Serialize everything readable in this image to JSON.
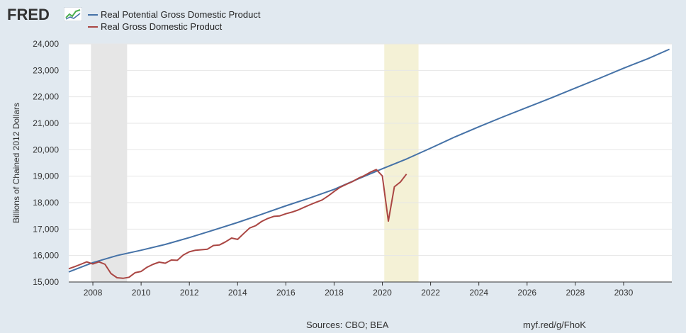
{
  "brand": {
    "logo_text": "FRED"
  },
  "legend": [
    {
      "label": "Real Potential Gross Domestic Product",
      "color": "#4572a7"
    },
    {
      "label": "Real Gross Domestic Product",
      "color": "#aa4643"
    }
  ],
  "footer": {
    "sources": "Sources: CBO; BEA",
    "link": "myf.red/g/FhoK"
  },
  "chart_data": {
    "type": "line",
    "title": "",
    "xlabel": "",
    "ylabel": "Billions of Chained 2012 Dollars",
    "xlim": [
      2007.0,
      2032.0
    ],
    "ylim": [
      15000,
      24000
    ],
    "x_ticks": [
      2008,
      2010,
      2012,
      2014,
      2016,
      2018,
      2020,
      2022,
      2024,
      2026,
      2028,
      2030
    ],
    "x_tick_labels": [
      "2008",
      "2010",
      "2012",
      "2014",
      "2016",
      "2018",
      "2020",
      "2022",
      "2024",
      "2026",
      "2028",
      "2030"
    ],
    "y_ticks": [
      15000,
      16000,
      17000,
      18000,
      19000,
      20000,
      21000,
      22000,
      23000,
      24000
    ],
    "y_tick_labels": [
      "15,000",
      "16,000",
      "17,000",
      "18,000",
      "19,000",
      "20,000",
      "21,000",
      "22,000",
      "23,000",
      "24,000"
    ],
    "grid": "horizontal",
    "legend_position": "top-left",
    "recessions": [
      {
        "start": 2007.92,
        "end": 2009.42,
        "color": "#e6e6e6"
      },
      {
        "start": 2020.08,
        "end": 2021.5,
        "color": "#f4f1d6"
      }
    ],
    "series": [
      {
        "name": "Real Potential Gross Domestic Product",
        "color": "#4572a7",
        "x": [
          2007.0,
          2008.0,
          2009.0,
          2010.0,
          2011.0,
          2012.0,
          2013.0,
          2014.0,
          2015.0,
          2016.0,
          2017.0,
          2018.0,
          2019.0,
          2020.0,
          2021.0,
          2022.0,
          2023.0,
          2024.0,
          2025.0,
          2026.0,
          2027.0,
          2028.0,
          2029.0,
          2030.0,
          2031.0,
          2031.9
        ],
        "y": [
          15380,
          15730,
          16000,
          16200,
          16420,
          16680,
          16960,
          17250,
          17560,
          17880,
          18180,
          18500,
          18900,
          19280,
          19650,
          20060,
          20480,
          20870,
          21240,
          21600,
          21960,
          22330,
          22700,
          23080,
          23440,
          23800
        ]
      },
      {
        "name": "Real Gross Domestic Product",
        "color": "#aa4643",
        "x": [
          2007.0,
          2007.25,
          2007.5,
          2007.75,
          2008.0,
          2008.25,
          2008.5,
          2008.75,
          2009.0,
          2009.25,
          2009.5,
          2009.75,
          2010.0,
          2010.25,
          2010.5,
          2010.75,
          2011.0,
          2011.25,
          2011.5,
          2011.75,
          2012.0,
          2012.25,
          2012.5,
          2012.75,
          2013.0,
          2013.25,
          2013.5,
          2013.75,
          2014.0,
          2014.25,
          2014.5,
          2014.75,
          2015.0,
          2015.25,
          2015.5,
          2015.75,
          2016.0,
          2016.25,
          2016.5,
          2016.75,
          2017.0,
          2017.25,
          2017.5,
          2017.75,
          2018.0,
          2018.25,
          2018.5,
          2018.75,
          2019.0,
          2019.25,
          2019.5,
          2019.75,
          2020.0,
          2020.25,
          2020.5,
          2020.75,
          2021.0
        ],
        "y": [
          15500,
          15580,
          15670,
          15760,
          15680,
          15760,
          15670,
          15320,
          15160,
          15140,
          15180,
          15350,
          15400,
          15560,
          15670,
          15750,
          15710,
          15830,
          15820,
          16020,
          16140,
          16200,
          16220,
          16240,
          16380,
          16400,
          16520,
          16660,
          16610,
          16830,
          17040,
          17130,
          17290,
          17400,
          17480,
          17500,
          17580,
          17640,
          17720,
          17820,
          17920,
          18010,
          18100,
          18250,
          18420,
          18580,
          18690,
          18790,
          18920,
          19020,
          19150,
          19250,
          19010,
          17300,
          18600,
          18780,
          19080
        ]
      }
    ]
  }
}
